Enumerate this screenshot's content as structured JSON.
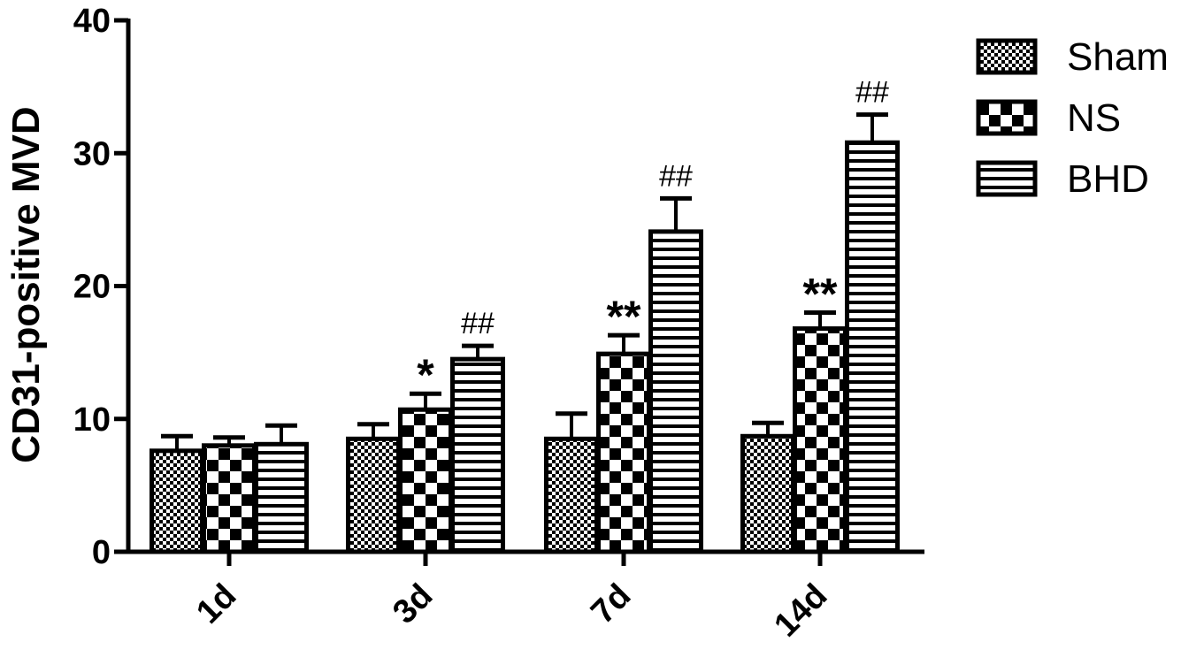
{
  "chart_data": {
    "type": "bar",
    "title": "",
    "xlabel": "",
    "ylabel": "CD31-positive MVD",
    "ylim": [
      0,
      40
    ],
    "yticks": [
      0,
      10,
      20,
      30,
      40
    ],
    "grid": false,
    "legend_position": "top-right",
    "categories": [
      "1d",
      "3d",
      "7d",
      "14d"
    ],
    "series": [
      {
        "name": "Sham",
        "pattern": "fine-checker",
        "values": [
          7.6,
          8.5,
          8.5,
          8.7
        ],
        "errors": [
          1.1,
          1.1,
          1.9,
          1.0
        ]
      },
      {
        "name": "NS",
        "pattern": "coarse-checker",
        "values": [
          8.0,
          10.7,
          14.9,
          16.8
        ],
        "errors": [
          0.6,
          1.2,
          1.4,
          1.2
        ]
      },
      {
        "name": "BHD",
        "pattern": "horizontal-stripes",
        "values": [
          8.1,
          14.5,
          24.1,
          30.8
        ],
        "errors": [
          1.4,
          1.0,
          2.5,
          2.1
        ]
      }
    ],
    "annotations": [
      {
        "series": "NS",
        "category": "3d",
        "text": "*"
      },
      {
        "series": "NS",
        "category": "7d",
        "text": "**"
      },
      {
        "series": "NS",
        "category": "14d",
        "text": "**"
      },
      {
        "series": "BHD",
        "category": "3d",
        "text": "##"
      },
      {
        "series": "BHD",
        "category": "7d",
        "text": "##"
      },
      {
        "series": "BHD",
        "category": "14d",
        "text": "##"
      }
    ]
  },
  "colors": {
    "ink": "#000000",
    "background": "#ffffff"
  }
}
